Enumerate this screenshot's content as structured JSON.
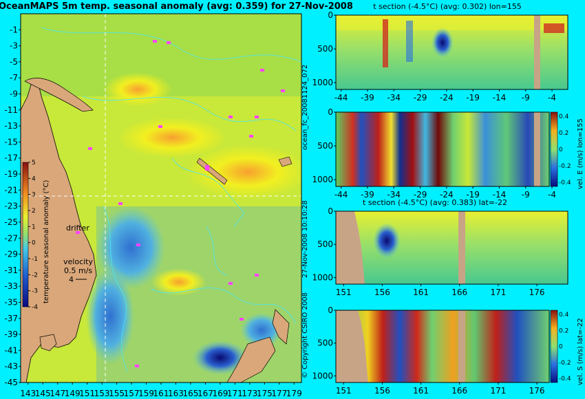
{
  "page": {
    "background": "#00f0ff",
    "title": "OceanMAPS 5m temp. seasonal anomaly (avg: 0.359) for 27-Nov-2008"
  },
  "side_text": {
    "run_id": "ocean_fc_20081124_072",
    "run_time": "27-Nov-2008 10:10:28",
    "copyright": "© Copyright CSIRO 2008"
  },
  "chart_data": [
    {
      "type": "heatmap",
      "name": "map",
      "title": "OceanMAPS 5m temp. seasonal anomaly (avg: 0.359) for 27-Nov-2008",
      "x_ticks": [
        143,
        145,
        147,
        149,
        151,
        153,
        155,
        157,
        159,
        161,
        163,
        165,
        167,
        169,
        171,
        173,
        175,
        177,
        179
      ],
      "y_ticks": [
        -1,
        -3,
        -5,
        -7,
        -9,
        -11,
        -13,
        -15,
        -17,
        -19,
        -21,
        -23,
        -25,
        -27,
        -29,
        -31,
        -33,
        -35,
        -37,
        -39,
        -41,
        -43,
        -45
      ],
      "xlim": [
        142,
        180
      ],
      "ylim": [
        -45,
        1
      ],
      "crosshair": {
        "lon": 155,
        "lat": -22
      },
      "colorbar": {
        "label": "temperature seasonal anomaly (°C)",
        "ticks": [
          5,
          4,
          3,
          2,
          1,
          0,
          -1,
          -2,
          -3,
          -4
        ],
        "range": [
          -4,
          5
        ]
      },
      "legend": {
        "drifter": "drifter",
        "velocity": "velocity",
        "velocity_value": "0.5 m/s",
        "velocity_scale": "4"
      },
      "colors": {
        "land": "#d9a77a",
        "ocean_mid": "#c8e83a",
        "warm": "#f2ef20",
        "cool": "#4aa0d6",
        "contour": "#4ee6f0",
        "drifter": "#ff44ff"
      }
    },
    {
      "type": "heatmap",
      "name": "t-section-lon",
      "title": "t section (-4.5°C) (avg: 0.302) lon=155",
      "x_ticks": [
        -44,
        -39,
        -34,
        -29,
        -24,
        -19,
        -14,
        -9,
        -4
      ],
      "y_ticks": [
        0,
        500,
        1000
      ],
      "xlim": [
        -45,
        -1
      ],
      "ylim": [
        1100,
        0
      ]
    },
    {
      "type": "heatmap",
      "name": "vel-e-section",
      "title": "",
      "x_ticks": [
        -44,
        -39,
        -34,
        -29,
        -24,
        -19,
        -14,
        -9,
        -4
      ],
      "y_ticks": [
        0,
        500,
        1000
      ],
      "xlim": [
        -45,
        -1
      ],
      "ylim": [
        1100,
        0
      ],
      "colorbar": {
        "label": "vel. E (m/s) lon=155",
        "ticks": [
          "0.4",
          "0.2",
          "0",
          "-0.2",
          "-0.4"
        ]
      }
    },
    {
      "type": "heatmap",
      "name": "t-section-lat",
      "title": "t section (-4.5°C) (avg: 0.383) lat=-22",
      "x_ticks": [
        151,
        156,
        161,
        166,
        171,
        176
      ],
      "y_ticks": [
        0,
        500,
        1000
      ],
      "xlim": [
        150,
        180
      ],
      "ylim": [
        1100,
        0
      ]
    },
    {
      "type": "heatmap",
      "name": "vel-s-section",
      "title": "",
      "x_ticks": [
        151,
        156,
        161,
        166,
        171,
        176
      ],
      "y_ticks": [
        0,
        500,
        1000
      ],
      "xlim": [
        150,
        180
      ],
      "ylim": [
        1100,
        0
      ],
      "colorbar": {
        "label": "vel. S (m/s) lat=-22",
        "ticks": [
          "0.4",
          "0.2",
          "0",
          "-0.2",
          "-0.4"
        ]
      }
    }
  ]
}
